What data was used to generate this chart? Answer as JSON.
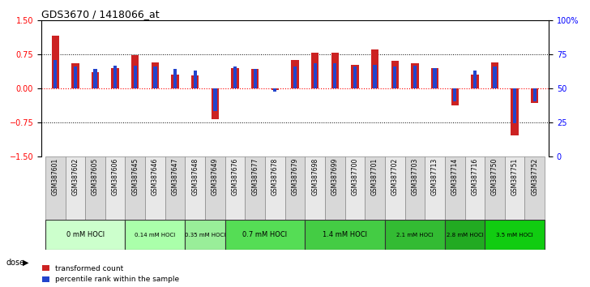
{
  "title": "GDS3670 / 1418066_at",
  "samples": [
    "GSM387601",
    "GSM387602",
    "GSM387605",
    "GSM387606",
    "GSM387645",
    "GSM387646",
    "GSM387647",
    "GSM387648",
    "GSM387649",
    "GSM387676",
    "GSM387677",
    "GSM387678",
    "GSM387679",
    "GSM387698",
    "GSM387699",
    "GSM387700",
    "GSM387701",
    "GSM387702",
    "GSM387703",
    "GSM387713",
    "GSM387714",
    "GSM387716",
    "GSM387750",
    "GSM387751",
    "GSM387752"
  ],
  "red_values": [
    1.15,
    0.55,
    0.35,
    0.45,
    0.72,
    0.56,
    0.3,
    0.28,
    -0.68,
    0.45,
    0.42,
    -0.05,
    0.62,
    0.78,
    0.78,
    0.52,
    0.85,
    0.6,
    0.55,
    0.45,
    -0.38,
    0.3,
    0.57,
    -1.05,
    -0.32
  ],
  "blue_values": [
    0.62,
    0.48,
    0.42,
    0.5,
    0.5,
    0.47,
    0.42,
    0.38,
    -0.5,
    0.47,
    0.42,
    -0.07,
    0.47,
    0.55,
    0.55,
    0.48,
    0.52,
    0.47,
    0.5,
    0.45,
    -0.3,
    0.38,
    0.47,
    -0.78,
    -0.3
  ],
  "dose_groups": [
    {
      "label": "0 mM HOCl",
      "start": 0,
      "end": 4,
      "color": "#ccffcc"
    },
    {
      "label": "0.14 mM HOCl",
      "start": 4,
      "end": 7,
      "color": "#aaffaa"
    },
    {
      "label": "0.35 mM HOCl",
      "start": 7,
      "end": 9,
      "color": "#99ee99"
    },
    {
      "label": "0.7 mM HOCl",
      "start": 9,
      "end": 13,
      "color": "#55dd55"
    },
    {
      "label": "1.4 mM HOCl",
      "start": 13,
      "end": 17,
      "color": "#44cc44"
    },
    {
      "label": "2.1 mM HOCl",
      "start": 17,
      "end": 20,
      "color": "#33bb33"
    },
    {
      "label": "2.8 mM HOCl",
      "start": 20,
      "end": 22,
      "color": "#22aa22"
    },
    {
      "label": "3.5 mM HOCl",
      "start": 22,
      "end": 25,
      "color": "#11cc11"
    }
  ],
  "ylim": [
    -1.5,
    1.5
  ],
  "yticks_red": [
    -1.5,
    -0.75,
    0.0,
    0.75,
    1.5
  ],
  "yticks_blue": [
    0,
    25,
    50,
    75,
    100
  ],
  "hlines": [
    -0.75,
    0.0,
    0.75
  ],
  "bar_width": 0.35
}
